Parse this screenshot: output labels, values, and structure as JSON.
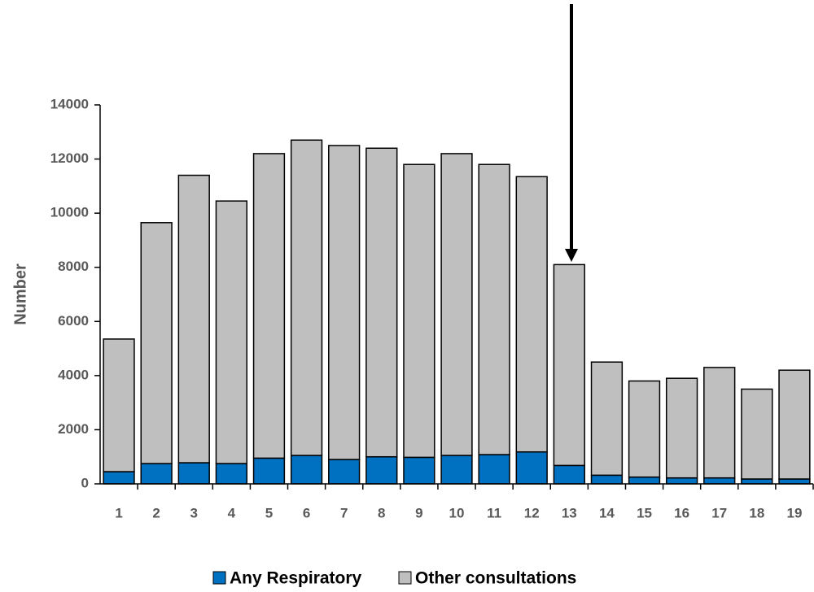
{
  "chart_data": {
    "type": "stacked_bar",
    "ylabel": "Number",
    "categories": [
      "1",
      "2",
      "3",
      "4",
      "5",
      "6",
      "7",
      "8",
      "9",
      "10",
      "11",
      "12",
      "13",
      "14",
      "15",
      "16",
      "17",
      "18",
      "19"
    ],
    "series": [
      {
        "name": "Any Respiratory",
        "color": "#0070c0",
        "values": [
          450,
          750,
          780,
          750,
          950,
          1050,
          900,
          1000,
          980,
          1050,
          1080,
          1180,
          680,
          320,
          250,
          220,
          220,
          180,
          180
        ]
      },
      {
        "name": "Other consultations",
        "color": "#bfbfbf",
        "values": [
          4900,
          8900,
          10620,
          9700,
          11250,
          11650,
          11600,
          11400,
          10820,
          11150,
          10720,
          10170,
          7420,
          4180,
          3550,
          3680,
          4080,
          3320,
          4020
        ]
      }
    ],
    "ylim": [
      0,
      14000
    ],
    "yticks": [
      0,
      2000,
      4000,
      6000,
      8000,
      10000,
      12000,
      14000
    ],
    "legend": "bottom"
  }
}
